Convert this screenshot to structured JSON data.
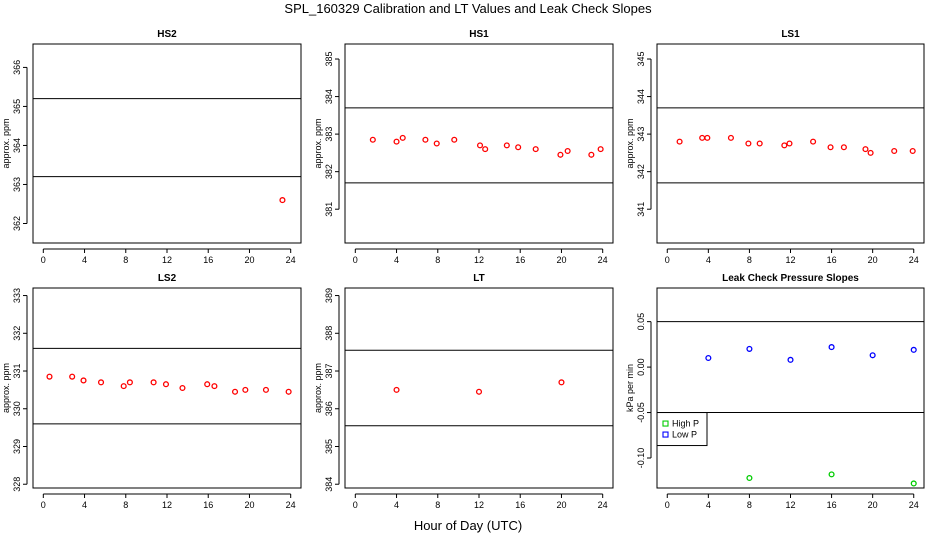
{
  "title": "SPL_160329  Calibration and LT Values and Leak Check Slopes",
  "x_axis_title": "Hour of Day (UTC)",
  "colors": {
    "calibration": "#ff0000",
    "high_p": "#00cc00",
    "low_p": "#0000ff",
    "frame": "#000000"
  },
  "chart_data": [
    {
      "type": "scatter",
      "title": "HS2",
      "ylabel": "approx. ppm",
      "xlim": [
        -1,
        25
      ],
      "ylim": [
        361.5,
        366.6
      ],
      "xticks": [
        0,
        4,
        8,
        12,
        16,
        20,
        24
      ],
      "yticks": [
        362,
        363,
        364,
        365,
        366
      ],
      "ref_lines": [
        363.2,
        365.2
      ],
      "series": [
        {
          "color": "red",
          "x": [
            23.2
          ],
          "y": [
            362.6
          ]
        }
      ]
    },
    {
      "type": "scatter",
      "title": "HS1",
      "ylabel": "approx. ppm",
      "xlim": [
        -1,
        25
      ],
      "ylim": [
        380.1,
        385.4
      ],
      "xticks": [
        0,
        4,
        8,
        12,
        16,
        20,
        24
      ],
      "yticks": [
        381,
        382,
        383,
        384,
        385
      ],
      "ref_lines": [
        381.7,
        383.7
      ],
      "series": [
        {
          "color": "red",
          "x": [
            1.7,
            4.0,
            4.6,
            6.8,
            7.9,
            9.6,
            12.1,
            12.6,
            14.7,
            15.8,
            17.5,
            19.9,
            20.6,
            22.9,
            23.8
          ],
          "y": [
            382.85,
            382.8,
            382.9,
            382.85,
            382.75,
            382.85,
            382.7,
            382.6,
            382.7,
            382.65,
            382.6,
            382.45,
            382.55,
            382.45,
            382.6
          ]
        }
      ]
    },
    {
      "type": "scatter",
      "title": "LS1",
      "ylabel": "approx. ppm",
      "xlim": [
        -1,
        25
      ],
      "ylim": [
        340.1,
        345.4
      ],
      "xticks": [
        0,
        4,
        8,
        12,
        16,
        20,
        24
      ],
      "yticks": [
        341,
        342,
        343,
        344,
        345
      ],
      "ref_lines": [
        341.7,
        343.7
      ],
      "series": [
        {
          "color": "red",
          "x": [
            1.2,
            3.4,
            3.9,
            6.2,
            7.9,
            9.0,
            11.4,
            11.9,
            14.2,
            15.9,
            17.2,
            19.3,
            19.8,
            22.1,
            23.9
          ],
          "y": [
            342.8,
            342.9,
            342.9,
            342.9,
            342.75,
            342.75,
            342.7,
            342.75,
            342.8,
            342.65,
            342.65,
            342.6,
            342.5,
            342.55,
            342.55
          ]
        }
      ]
    },
    {
      "type": "scatter",
      "title": "LS2",
      "ylabel": "approx. ppm",
      "xlim": [
        -1,
        25
      ],
      "ylim": [
        327.9,
        333.2
      ],
      "xticks": [
        0,
        4,
        8,
        12,
        16,
        20,
        24
      ],
      "yticks": [
        328,
        329,
        330,
        331,
        332,
        333
      ],
      "ref_lines": [
        329.6,
        331.6
      ],
      "series": [
        {
          "color": "red",
          "x": [
            0.6,
            2.8,
            3.9,
            5.6,
            7.8,
            8.4,
            10.7,
            11.9,
            13.5,
            15.9,
            16.6,
            18.6,
            19.6,
            21.6,
            23.8
          ],
          "y": [
            330.85,
            330.85,
            330.75,
            330.7,
            330.6,
            330.7,
            330.7,
            330.65,
            330.55,
            330.65,
            330.6,
            330.45,
            330.5,
            330.5,
            330.45
          ]
        }
      ]
    },
    {
      "type": "scatter",
      "title": "LT",
      "ylabel": "approx. ppm",
      "xlim": [
        -1,
        25
      ],
      "ylim": [
        383.9,
        389.2
      ],
      "xticks": [
        0,
        4,
        8,
        12,
        16,
        20,
        24
      ],
      "yticks": [
        384,
        385,
        386,
        387,
        388,
        389
      ],
      "ref_lines": [
        385.55,
        387.55
      ],
      "series": [
        {
          "color": "red",
          "x": [
            4.0,
            12.0,
            20.0
          ],
          "y": [
            386.5,
            386.45,
            386.7
          ]
        }
      ]
    },
    {
      "type": "scatter",
      "title": "Leak Check Pressure Slopes",
      "ylabel": "kPa per min",
      "xlim": [
        -1,
        25
      ],
      "ylim": [
        -0.133,
        0.087
      ],
      "xticks": [
        0,
        4,
        8,
        12,
        16,
        20,
        24
      ],
      "yticks": [
        -0.1,
        -0.05,
        0.0,
        0.05
      ],
      "ytick_labels": [
        "-0.10",
        "-0.05",
        "0.00",
        "0.05"
      ],
      "ref_lines": [
        -0.05,
        0.05
      ],
      "legend": {
        "position": "bottom-left",
        "entries": [
          "High P",
          "Low P"
        ]
      },
      "series": [
        {
          "name": "High P",
          "color": "green",
          "x": [
            8.0,
            16.0,
            24.0
          ],
          "y": [
            -0.122,
            -0.118,
            -0.128
          ]
        },
        {
          "name": "Low P",
          "color": "blue",
          "x": [
            4.0,
            8.0,
            12.0,
            16.0,
            20.0,
            24.0
          ],
          "y": [
            0.01,
            0.02,
            0.008,
            0.022,
            0.013,
            0.019
          ]
        }
      ]
    }
  ]
}
